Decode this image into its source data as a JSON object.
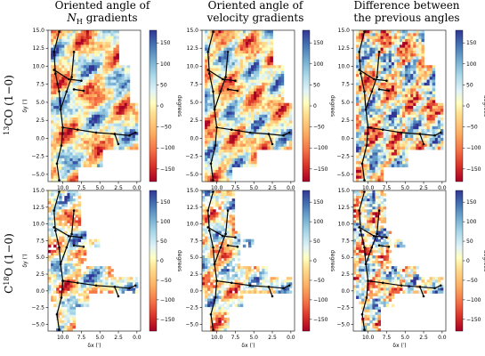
{
  "figure": {
    "column_titles": [
      {
        "line1": "Oriented angle of",
        "line2_main": "N",
        "line2_sub": "H",
        "line2_rest": " gradients"
      },
      {
        "line1": "Oriented angle of",
        "line2_main": "velocity gradients",
        "line2_sub": "",
        "line2_rest": ""
      },
      {
        "line1": "Difference between",
        "line2_main": "the previous angles",
        "line2_sub": "",
        "line2_rest": ""
      }
    ],
    "row_labels": [
      {
        "sup": "13",
        "main": "CO (1−0)"
      },
      {
        "sup": "18",
        "main": "C O (1−0)"
      }
    ],
    "row2_label_prefix": "C",
    "row2_label_sup": "18",
    "row2_label_rest": "O (1−0)",
    "row1_label_sup": "13",
    "row1_label_rest": "CO (1−0)"
  },
  "chart_data": {
    "type": "heatmap",
    "xlabel": "δx (′)",
    "ylabel": "δy (′)",
    "xlim": [
      12,
      -0.5
    ],
    "ylim": [
      -6,
      15
    ],
    "xticks": [
      10.0,
      7.5,
      5.0,
      2.5,
      0.0
    ],
    "xtick_labels": [
      "10.0",
      "7.5",
      "5.0",
      "2.5",
      "0.0"
    ],
    "yticks": [
      15.0,
      12.5,
      10.0,
      7.5,
      5.0,
      2.5,
      0.0,
      -2.5,
      -5.0
    ],
    "ytick_labels": [
      "15.0",
      "12.5",
      "10.0",
      "7.5",
      "5.0",
      "2.5",
      "0.0",
      "−2.5",
      "−5.0"
    ],
    "colorbar": {
      "label": "degrees",
      "range": [
        -180,
        180
      ],
      "ticks": [
        150,
        100,
        50,
        0,
        -50,
        -100,
        -150
      ],
      "tick_labels": [
        "150",
        "100",
        "50",
        "0",
        "−50",
        "−100",
        "−150"
      ],
      "colormap": "RdYlBu (red negative, blue positive)"
    },
    "panels": [
      {
        "row": "13CO (1−0)",
        "column": "Oriented angle of N_H gradients",
        "ylabel_shown": true,
        "xlabel_shown": false
      },
      {
        "row": "13CO (1−0)",
        "column": "Oriented angle of velocity gradients",
        "ylabel_shown": false,
        "xlabel_shown": false
      },
      {
        "row": "13CO (1−0)",
        "column": "Difference between the previous angles",
        "ylabel_shown": false,
        "xlabel_shown": false
      },
      {
        "row": "C18O (1−0)",
        "column": "Oriented angle of N_H gradients",
        "ylabel_shown": true,
        "xlabel_shown": true
      },
      {
        "row": "C18O (1−0)",
        "column": "Oriented angle of velocity gradients",
        "ylabel_shown": false,
        "xlabel_shown": true
      },
      {
        "row": "C18O (1−0)",
        "column": "Difference between the previous angles",
        "ylabel_shown": false,
        "xlabel_shown": true
      }
    ],
    "overlay": {
      "description_shown": false,
      "skeleton_color": "#000000",
      "skeleton_paths": [
        [
          [
            10.5,
            14.8
          ],
          [
            11.2,
            12.0
          ],
          [
            11.0,
            9.0
          ],
          [
            10.5,
            6.5
          ],
          [
            10.3,
            4.0
          ],
          [
            10.0,
            1.5
          ],
          [
            10.2,
            -1.0
          ],
          [
            10.8,
            -3.5
          ],
          [
            10.5,
            -5.8
          ]
        ],
        [
          [
            10.3,
            4.0
          ],
          [
            9.5,
            6.5
          ],
          [
            8.8,
            8.5
          ],
          [
            8.5,
            12.0
          ]
        ],
        [
          [
            10.0,
            1.5
          ],
          [
            8.0,
            1.2
          ],
          [
            5.5,
            0.8
          ],
          [
            3.0,
            0.6
          ],
          [
            1.0,
            0.4
          ],
          [
            0.2,
            0.8
          ]
        ],
        [
          [
            11.2,
            9.5
          ],
          [
            9.2,
            8.2
          ],
          [
            7.5,
            8.0
          ]
        ],
        [
          [
            8.5,
            6.8
          ],
          [
            7.2,
            6.6
          ]
        ],
        [
          [
            3.0,
            0.6
          ],
          [
            2.5,
            -0.8
          ]
        ]
      ],
      "dot_color": "#000000"
    }
  }
}
